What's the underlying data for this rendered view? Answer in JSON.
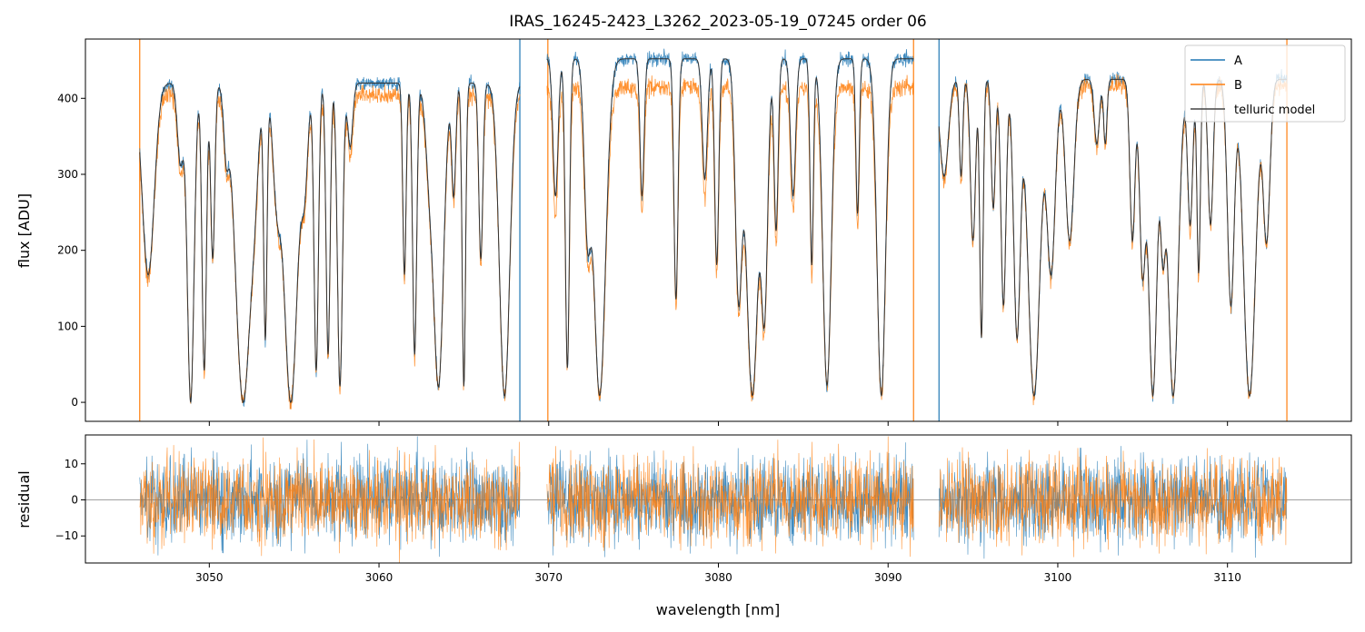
{
  "chart_data": [
    {
      "panel": "flux",
      "type": "line",
      "title": "IRAS_16245-2423_L3262_2023-05-19_07245  order 06",
      "xlabel": "",
      "ylabel": "flux [ADU]",
      "xlim": [
        3042.7,
        3117.3
      ],
      "ylim": [
        -25,
        478
      ],
      "xticks": [
        3050,
        3060,
        3070,
        3080,
        3090,
        3100,
        3110
      ],
      "yticks": [
        0,
        100,
        200,
        300,
        400
      ],
      "ytick_labels": [
        "0",
        "100",
        "200",
        "300",
        "400"
      ],
      "legend_position": "top-right",
      "legend": [
        "A",
        "B",
        "telluric model"
      ],
      "segments": [
        {
          "start": 3045.9,
          "end": 3068.3,
          "contA": 420,
          "contB": 405
        },
        {
          "start": 3069.9,
          "end": 3091.5,
          "contA": 452,
          "contB": 415
        },
        {
          "start": 3093.0,
          "end": 3113.5,
          "contA": 425,
          "contB": 418
        }
      ],
      "series": [
        {
          "name": "A",
          "color": "#1f77b4"
        },
        {
          "name": "B",
          "color": "#ff7f0e"
        },
        {
          "name": "telluric model",
          "color": "#333333"
        }
      ],
      "absorption_lines": [
        [
          3046.4,
          0.35,
          0.6
        ],
        [
          3048.3,
          0.18,
          0.25
        ],
        [
          3048.9,
          0.2,
          1.0
        ],
        [
          3049.7,
          0.13,
          0.9
        ],
        [
          3050.2,
          0.12,
          0.55
        ],
        [
          3051.0,
          0.15,
          0.2
        ],
        [
          3052.0,
          0.45,
          1.0
        ],
        [
          3052.6,
          0.25,
          0.25
        ],
        [
          3053.3,
          0.1,
          0.8
        ],
        [
          3054.0,
          0.25,
          0.35
        ],
        [
          3054.8,
          0.4,
          1.0
        ],
        [
          3055.6,
          0.2,
          0.3
        ],
        [
          3056.3,
          0.13,
          0.9
        ],
        [
          3057.0,
          0.12,
          0.85
        ],
        [
          3057.7,
          0.15,
          0.95
        ],
        [
          3058.3,
          0.15,
          0.2
        ],
        [
          3061.5,
          0.1,
          0.6
        ],
        [
          3062.1,
          0.12,
          0.85
        ],
        [
          3063.0,
          0.25,
          0.25
        ],
        [
          3063.5,
          0.3,
          0.95
        ],
        [
          3064.4,
          0.12,
          0.35
        ],
        [
          3065.0,
          0.1,
          0.95
        ],
        [
          3066.0,
          0.12,
          0.55
        ],
        [
          3067.4,
          0.3,
          0.98
        ],
        [
          3070.4,
          0.15,
          0.4
        ],
        [
          3071.1,
          0.12,
          0.9
        ],
        [
          3072.3,
          0.2,
          0.5
        ],
        [
          3073.0,
          0.35,
          0.98
        ],
        [
          3075.5,
          0.12,
          0.4
        ],
        [
          3077.5,
          0.12,
          0.7
        ],
        [
          3079.2,
          0.15,
          0.35
        ],
        [
          3079.9,
          0.12,
          0.6
        ],
        [
          3081.2,
          0.2,
          0.7
        ],
        [
          3082.0,
          0.35,
          0.98
        ],
        [
          3082.7,
          0.2,
          0.75
        ],
        [
          3083.4,
          0.12,
          0.5
        ],
        [
          3084.4,
          0.15,
          0.4
        ],
        [
          3085.5,
          0.1,
          0.6
        ],
        [
          3086.4,
          0.25,
          0.95
        ],
        [
          3088.2,
          0.1,
          0.45
        ],
        [
          3089.6,
          0.25,
          0.98
        ],
        [
          3093.3,
          0.25,
          0.3
        ],
        [
          3094.3,
          0.1,
          0.3
        ],
        [
          3095.0,
          0.15,
          0.5
        ],
        [
          3095.5,
          0.1,
          0.8
        ],
        [
          3096.2,
          0.12,
          0.4
        ],
        [
          3096.8,
          0.15,
          0.7
        ],
        [
          3097.6,
          0.2,
          0.8
        ],
        [
          3098.6,
          0.35,
          0.98
        ],
        [
          3099.6,
          0.25,
          0.6
        ],
        [
          3100.7,
          0.25,
          0.5
        ],
        [
          3102.3,
          0.15,
          0.2
        ],
        [
          3102.8,
          0.1,
          0.2
        ],
        [
          3104.4,
          0.15,
          0.5
        ],
        [
          3105.0,
          0.18,
          0.6
        ],
        [
          3105.6,
          0.25,
          0.98
        ],
        [
          3106.2,
          0.15,
          0.5
        ],
        [
          3106.8,
          0.3,
          0.98
        ],
        [
          3107.8,
          0.15,
          0.45
        ],
        [
          3108.3,
          0.1,
          0.6
        ],
        [
          3109.0,
          0.15,
          0.45
        ],
        [
          3110.2,
          0.2,
          0.7
        ],
        [
          3111.3,
          0.35,
          0.98
        ],
        [
          3112.3,
          0.2,
          0.5
        ]
      ]
    },
    {
      "panel": "residual",
      "type": "line",
      "xlabel": "wavelength [nm]",
      "ylabel": "residual",
      "xlim": [
        3042.7,
        3117.3
      ],
      "ylim": [
        -17.5,
        18
      ],
      "xticks": [
        3050,
        3060,
        3070,
        3080,
        3090,
        3100,
        3110
      ],
      "xtick_labels": [
        "3050",
        "3060",
        "3070",
        "3080",
        "3090",
        "3100",
        "3110"
      ],
      "yticks": [
        -10,
        0,
        10
      ],
      "ytick_labels": [
        "−10",
        "0",
        "10"
      ],
      "zero_line": 0,
      "noise_sigma": 6,
      "series": [
        {
          "name": "A",
          "color": "#1f77b4"
        },
        {
          "name": "B",
          "color": "#ff7f0e"
        }
      ]
    }
  ]
}
